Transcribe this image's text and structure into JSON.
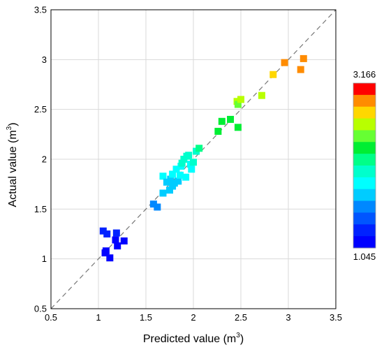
{
  "chart_data": {
    "type": "scatter",
    "title": "",
    "xlabel_main": "Predicted value (m",
    "xlabel_sup": "3",
    "xlabel_end": ")",
    "ylabel_main": "Actual value (m",
    "ylabel_sup": "3",
    "ylabel_end": ")",
    "xlim": [
      0.5,
      3.5
    ],
    "ylim": [
      0.5,
      3.5
    ],
    "xticks": [
      "0.5",
      "1",
      "1.5",
      "2",
      "2.5",
      "3",
      "3.5"
    ],
    "yticks": [
      "0.5",
      "1",
      "1.5",
      "2",
      "2.5",
      "3",
      "3.5"
    ],
    "grid": true,
    "reference_line": "y = x dashed",
    "colorbar": {
      "min": 1.045,
      "max": 3.166,
      "min_label": "1.045",
      "max_label": "3.166",
      "colors": [
        "#ff0000",
        "#ff8c00",
        "#ffd700",
        "#b8ff00",
        "#66ff33",
        "#00ee33",
        "#00ff88",
        "#00ffcc",
        "#00ffff",
        "#00ccff",
        "#0088ff",
        "#0055ff",
        "#0022ff",
        "#0000ff"
      ]
    },
    "points": [
      {
        "x": 1.05,
        "y": 1.28
      },
      {
        "x": 1.09,
        "y": 1.25
      },
      {
        "x": 1.19,
        "y": 1.26
      },
      {
        "x": 1.18,
        "y": 1.19
      },
      {
        "x": 1.27,
        "y": 1.18
      },
      {
        "x": 1.2,
        "y": 1.13
      },
      {
        "x": 1.08,
        "y": 1.08
      },
      {
        "x": 1.07,
        "y": 1.06
      },
      {
        "x": 1.12,
        "y": 1.01
      },
      {
        "x": 1.58,
        "y": 1.55
      },
      {
        "x": 1.62,
        "y": 1.52
      },
      {
        "x": 1.68,
        "y": 1.66
      },
      {
        "x": 1.75,
        "y": 1.69
      },
      {
        "x": 1.78,
        "y": 1.73
      },
      {
        "x": 1.68,
        "y": 1.83
      },
      {
        "x": 1.72,
        "y": 1.77
      },
      {
        "x": 1.76,
        "y": 1.8
      },
      {
        "x": 1.78,
        "y": 1.85
      },
      {
        "x": 1.8,
        "y": 1.76
      },
      {
        "x": 1.82,
        "y": 1.9
      },
      {
        "x": 1.84,
        "y": 1.78
      },
      {
        "x": 1.86,
        "y": 1.84
      },
      {
        "x": 1.87,
        "y": 1.93
      },
      {
        "x": 1.88,
        "y": 1.96
      },
      {
        "x": 1.9,
        "y": 2.0
      },
      {
        "x": 1.92,
        "y": 1.82
      },
      {
        "x": 1.93,
        "y": 2.03
      },
      {
        "x": 1.95,
        "y": 2.04
      },
      {
        "x": 1.97,
        "y": 1.95
      },
      {
        "x": 1.98,
        "y": 1.9
      },
      {
        "x": 2.0,
        "y": 1.97
      },
      {
        "x": 2.03,
        "y": 2.08
      },
      {
        "x": 2.06,
        "y": 2.11
      },
      {
        "x": 2.26,
        "y": 2.28
      },
      {
        "x": 2.3,
        "y": 2.38
      },
      {
        "x": 2.39,
        "y": 2.4
      },
      {
        "x": 2.46,
        "y": 2.58
      },
      {
        "x": 2.47,
        "y": 2.55
      },
      {
        "x": 2.5,
        "y": 2.6
      },
      {
        "x": 2.47,
        "y": 2.32
      },
      {
        "x": 2.72,
        "y": 2.64
      },
      {
        "x": 2.84,
        "y": 2.85
      },
      {
        "x": 2.96,
        "y": 2.97
      },
      {
        "x": 3.13,
        "y": 2.9
      },
      {
        "x": 3.16,
        "y": 3.01
      }
    ]
  }
}
